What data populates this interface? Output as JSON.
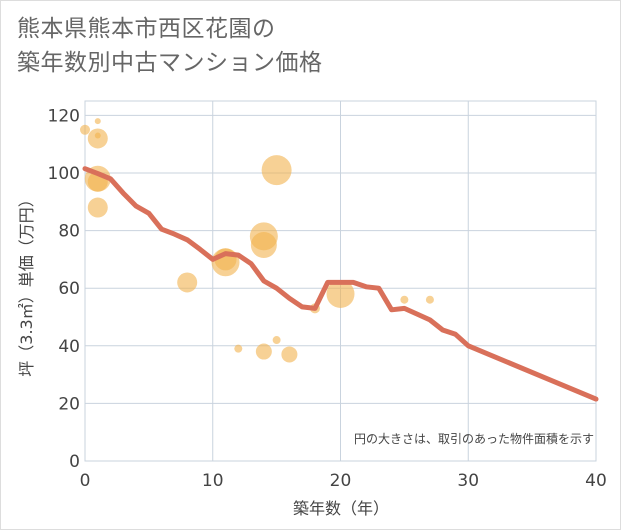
{
  "title": {
    "line1": "熊本県熊本市西区花園の",
    "line2": "築年数別中古マンション価格"
  },
  "note": "円の大きさは、取引のあった物件面積を示す",
  "colors": {
    "line": "#d9705a",
    "bubble": "#f2b24e",
    "grid": "#c9d3de",
    "axis": "#444444"
  },
  "chart_data": {
    "type": "scatter",
    "xlabel": "築年数（年）",
    "ylabel": "坪（3.3㎡）単価（万円）",
    "xlim": [
      0,
      40
    ],
    "ylim": [
      0,
      125
    ],
    "xticks": [
      0,
      10,
      20,
      30,
      40
    ],
    "yticks": [
      0,
      20,
      40,
      60,
      80,
      100,
      120
    ],
    "grid": true,
    "bubbles": [
      {
        "x": 0,
        "y": 115,
        "size": 5
      },
      {
        "x": 1,
        "y": 118,
        "size": 3
      },
      {
        "x": 1,
        "y": 113,
        "size": 3
      },
      {
        "x": 1,
        "y": 112,
        "size": 10
      },
      {
        "x": 1,
        "y": 98,
        "size": 13
      },
      {
        "x": 1,
        "y": 97,
        "size": 10
      },
      {
        "x": 1,
        "y": 88,
        "size": 10
      },
      {
        "x": 8,
        "y": 62,
        "size": 10
      },
      {
        "x": 11,
        "y": 69,
        "size": 14
      },
      {
        "x": 11,
        "y": 70,
        "size": 11
      },
      {
        "x": 12,
        "y": 39,
        "size": 4
      },
      {
        "x": 14,
        "y": 78,
        "size": 14
      },
      {
        "x": 14,
        "y": 75,
        "size": 13
      },
      {
        "x": 14,
        "y": 38,
        "size": 8
      },
      {
        "x": 15,
        "y": 101,
        "size": 15
      },
      {
        "x": 15,
        "y": 42,
        "size": 4
      },
      {
        "x": 16,
        "y": 37,
        "size": 8
      },
      {
        "x": 18,
        "y": 53,
        "size": 5
      },
      {
        "x": 20,
        "y": 58,
        "size": 14
      },
      {
        "x": 25,
        "y": 56,
        "size": 4
      },
      {
        "x": 27,
        "y": 56,
        "size": 4
      }
    ],
    "trend": {
      "x": [
        0,
        1,
        2,
        3,
        4,
        5,
        6,
        7,
        8,
        9,
        10,
        11,
        12,
        13,
        14,
        15,
        16,
        17,
        18,
        19,
        20,
        21,
        22,
        23,
        24,
        25,
        26,
        27,
        28,
        29,
        30,
        40
      ],
      "y": [
        101.5,
        99.8,
        98,
        93,
        88.5,
        86,
        80.5,
        78.8,
        76.8,
        73.5,
        70,
        72,
        71.5,
        68.5,
        62.5,
        60,
        56.5,
        53.5,
        53,
        62,
        62,
        62,
        60.5,
        60,
        52.5,
        53,
        51,
        49,
        45.5,
        44,
        40,
        21.5
      ]
    }
  }
}
